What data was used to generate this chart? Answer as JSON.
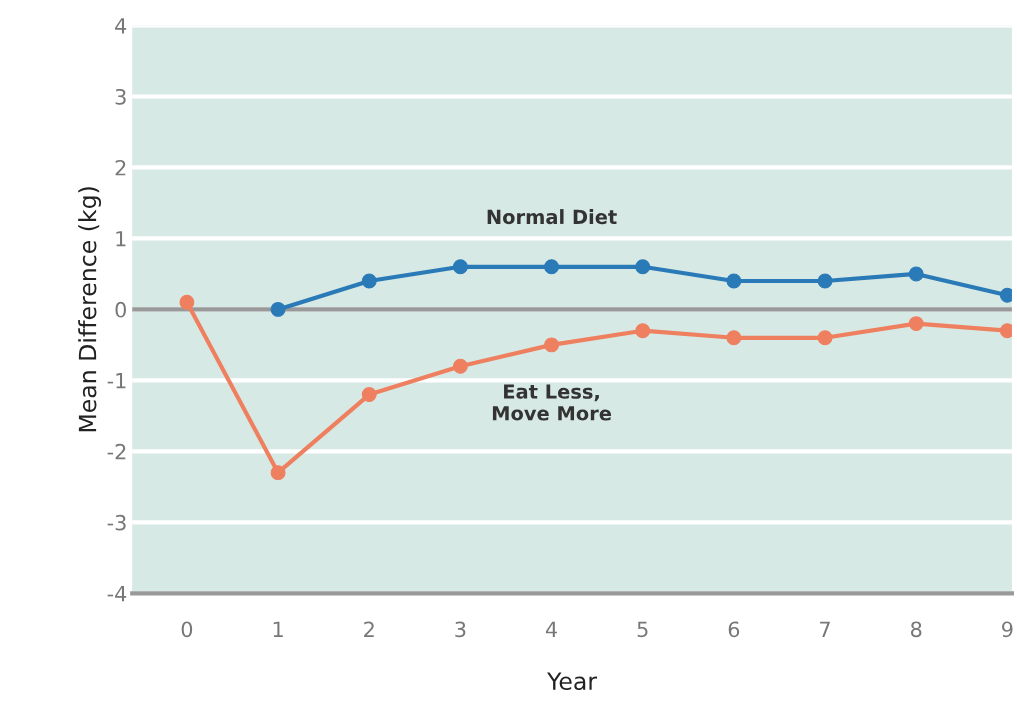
{
  "chart_data": {
    "type": "line",
    "xlabel": "Year",
    "ylabel": "Mean Difference (kg)",
    "x": [
      0,
      1,
      2,
      3,
      4,
      5,
      6,
      7,
      8,
      9
    ],
    "series": [
      {
        "name": "Normal Diet",
        "color": "#2a7ab8",
        "values": [
          null,
          0.0,
          0.4,
          0.6,
          0.6,
          0.6,
          0.4,
          0.4,
          0.5,
          0.2
        ]
      },
      {
        "name": "Eat Less,\nMove More",
        "color": "#ee8060",
        "values": [
          0.1,
          -2.3,
          -1.2,
          -0.8,
          -0.5,
          -0.3,
          -0.4,
          -0.4,
          -0.2,
          -0.3
        ]
      }
    ],
    "xlim": [
      -0.6,
      9.05
    ],
    "ylim": [
      -4,
      4
    ],
    "xticks": [
      0,
      1,
      2,
      3,
      4,
      5,
      6,
      7,
      8,
      9
    ],
    "yticks": [
      -4,
      -3,
      -2,
      -1,
      0,
      1,
      2,
      3,
      4
    ],
    "ref_lines": [
      {
        "axis": "y",
        "value": 0,
        "color": "#999999"
      }
    ],
    "grid": "y",
    "marker": "circle",
    "line_style": "solid",
    "legend": false
  }
}
